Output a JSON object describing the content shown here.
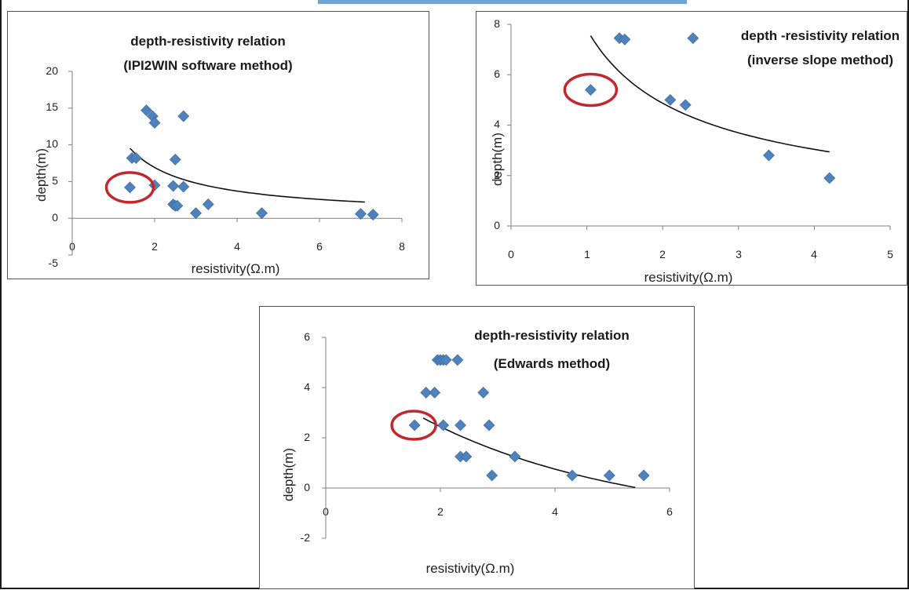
{
  "colors": {
    "marker": "#4f81bd",
    "trendline": "#111111",
    "highlight": "#c0282d",
    "accent": "#6fa3d4"
  },
  "chart_data": [
    {
      "type": "scatter",
      "title": [
        "depth-resistivity relation",
        "(IPI2WIN software method)"
      ],
      "xlabel": "resistivity(Ω.m)",
      "ylabel": "depth(m)",
      "xlim": [
        0,
        8
      ],
      "ylim": [
        -5,
        20
      ],
      "xticks": [
        "0",
        "2",
        "4",
        "6",
        "8"
      ],
      "yticks": [
        "-5",
        "0",
        "5",
        "10",
        "15",
        "20"
      ],
      "grid": false,
      "legend": "none",
      "series": [
        {
          "marker": "diamond",
          "x": [
            1.4,
            1.45,
            1.55,
            1.8,
            1.95,
            2.0,
            2.0,
            2.45,
            2.45,
            2.5,
            2.5,
            2.55,
            2.7,
            2.7,
            3.0,
            3.3,
            4.6,
            7.0,
            7.3
          ],
          "y": [
            4.2,
            8.2,
            8.2,
            14.7,
            13.9,
            13.0,
            4.5,
            1.9,
            4.4,
            8.0,
            1.7,
            1.7,
            13.9,
            4.3,
            0.7,
            1.9,
            0.7,
            0.6,
            0.5
          ]
        }
      ],
      "trendline": {
        "type": "power",
        "x": [
          1.4,
          7.1
        ],
        "a": 12.9,
        "b": -0.9
      },
      "highlight": {
        "x": 1.4,
        "y": 4.2
      }
    },
    {
      "type": "scatter",
      "title": [
        "depth -resistivity relation",
        "(inverse slope method)"
      ],
      "xlabel": "resistivity(Ω.m)",
      "ylabel": "depth(m)",
      "xlim": [
        0,
        5
      ],
      "ylim": [
        0,
        8
      ],
      "xticks": [
        "0",
        "1",
        "2",
        "3",
        "4",
        "5"
      ],
      "yticks": [
        "0",
        "2",
        "4",
        "6",
        "8"
      ],
      "grid": false,
      "legend": "none",
      "series": [
        {
          "marker": "diamond",
          "x": [
            1.05,
            1.43,
            1.5,
            2.1,
            2.3,
            2.4,
            3.4,
            4.2
          ],
          "y": [
            5.4,
            7.45,
            7.4,
            5.0,
            4.8,
            7.45,
            2.8,
            1.9
          ]
        }
      ],
      "trendline": {
        "type": "power",
        "x": [
          1.05,
          4.2
        ],
        "a": 7.8,
        "b": -0.68
      },
      "highlight": {
        "x": 1.05,
        "y": 5.4
      }
    },
    {
      "type": "scatter",
      "title": [
        "depth-resistivity relation",
        "(Edwards method)"
      ],
      "xlabel": "resistivity(Ω.m)",
      "ylabel": "depth(m)",
      "xlim": [
        0,
        6
      ],
      "ylim": [
        -2,
        6
      ],
      "xticks": [
        "0",
        "2",
        "4",
        "6"
      ],
      "yticks": [
        "-2",
        "0",
        "2",
        "4",
        "6"
      ],
      "grid": false,
      "legend": "none",
      "series": [
        {
          "marker": "diamond",
          "x": [
            1.55,
            1.75,
            1.9,
            1.95,
            2.0,
            2.05,
            2.1,
            2.05,
            2.3,
            2.35,
            2.35,
            2.45,
            2.75,
            2.85,
            2.9,
            3.3,
            4.3,
            4.95,
            5.55
          ],
          "y": [
            2.5,
            3.8,
            3.8,
            5.1,
            5.1,
            5.1,
            5.1,
            2.5,
            5.1,
            2.5,
            1.25,
            1.25,
            3.8,
            2.5,
            0.5,
            1.25,
            0.5,
            0.5,
            0.5
          ]
        }
      ],
      "trendline": {
        "type": "exponential",
        "x": [
          1.7,
          5.4
        ],
        "a": 6.9,
        "b": -0.28,
        "c": -1.5
      },
      "highlight": {
        "x": 1.55,
        "y": 2.5
      }
    }
  ]
}
